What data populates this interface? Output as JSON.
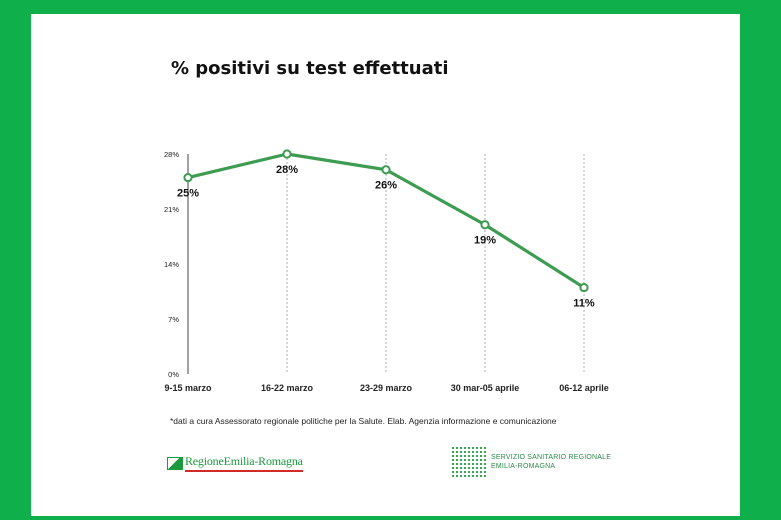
{
  "chart_data": {
    "type": "line",
    "title": "% positivi su test effettuati",
    "categories": [
      "9-15 marzo",
      "16-22 marzo",
      "23-29 marzo",
      "30 mar-05 aprile",
      "06-12 aprile"
    ],
    "series": [
      {
        "values": [
          25,
          28,
          26,
          19,
          11
        ]
      }
    ],
    "data_labels": [
      "25%",
      "28%",
      "26%",
      "19%",
      "11%"
    ],
    "y_ticks": [
      "0%",
      "7%",
      "14%",
      "21%",
      "28%"
    ],
    "ylim": [
      0,
      28
    ],
    "grid": "vertical dashed",
    "legend": "none",
    "line_color": "#3d9b52"
  },
  "footnote": "*dati a cura Assessorato regionale politiche per la Salute. Elab. Agenzia informazione e comunicazione",
  "logos": {
    "region": "RegioneEmilia-Romagna",
    "health_line1": "SERVIZIO SANITARIO REGIONALE",
    "health_line2": "EMILIA-ROMAGNA"
  },
  "colors": {
    "border": "#0fb04c",
    "line": "#3d9b52"
  }
}
